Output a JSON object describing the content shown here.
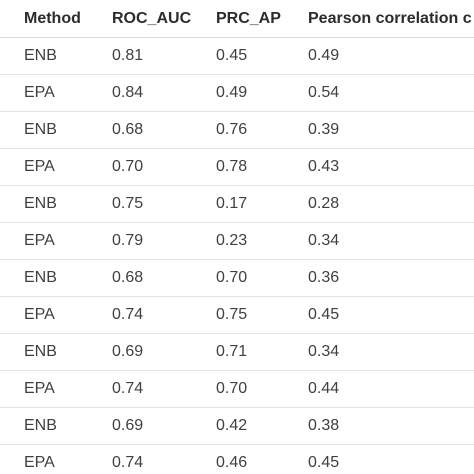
{
  "table": {
    "headers": [
      "Method",
      "ROC_AUC",
      "PRC_AP",
      "Pearson correlation c"
    ],
    "rows": [
      [
        "ENB",
        "0.81",
        "0.45",
        "0.49"
      ],
      [
        "EPA",
        "0.84",
        "0.49",
        "0.54"
      ],
      [
        "ENB",
        "0.68",
        "0.76",
        "0.39"
      ],
      [
        "EPA",
        "0.70",
        "0.78",
        "0.43"
      ],
      [
        "ENB",
        "0.75",
        "0.17",
        "0.28"
      ],
      [
        "EPA",
        "0.79",
        "0.23",
        "0.34"
      ],
      [
        "ENB",
        "0.68",
        "0.70",
        "0.36"
      ],
      [
        "EPA",
        "0.74",
        "0.75",
        "0.45"
      ],
      [
        "ENB",
        "0.69",
        "0.71",
        "0.34"
      ],
      [
        "EPA",
        "0.74",
        "0.70",
        "0.44"
      ],
      [
        "ENB",
        "0.69",
        "0.42",
        "0.38"
      ],
      [
        "EPA",
        "0.74",
        "0.46",
        "0.45"
      ]
    ]
  }
}
